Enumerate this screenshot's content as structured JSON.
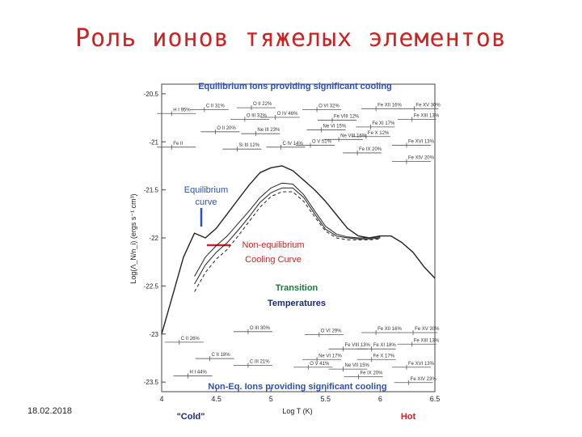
{
  "slide": {
    "title": "Роль ионов тяжелых элементов",
    "date": "18.02.2018"
  },
  "colors": {
    "title": "#cc2222",
    "blue": "#2b4fbf",
    "red": "#d42020",
    "dark_blue": "#1a2a7a",
    "curve": "#222222"
  },
  "chart_data": {
    "type": "line",
    "title": "Equilibrium Ions providing significant cooling",
    "bottom_title": "Non-Eq. Ions providing significant cooling",
    "xlabel": "Log T (K)",
    "ylabel": "Log(Λ_N/n_i) (ergs s⁻¹ cm³)",
    "x_ticks": [
      "4",
      "4.5",
      "5",
      "5.5",
      "6",
      "6.5"
    ],
    "y_ticks": [
      "-20.5",
      "-21",
      "-21.5",
      "-22",
      "-22.5",
      "-23",
      "-23.5"
    ],
    "xlim": [
      4,
      6.5
    ],
    "ylim": [
      -23.6,
      -20.4
    ],
    "x_end_labels": {
      "left": "\"Cold\"",
      "right": "Hot"
    },
    "annotations": {
      "equilibrium": [
        "Equilibrium",
        "curve"
      ],
      "non_equilibrium": [
        "Non-equilibrium",
        "Cooling Curve"
      ],
      "transition": [
        "Transition",
        "Temperatures"
      ]
    },
    "series": [
      {
        "line": "solid",
        "width": 1.4,
        "x": [
          4.0,
          4.1,
          4.2,
          4.3,
          4.4,
          4.5,
          4.6,
          4.7,
          4.8,
          4.9,
          5.0,
          5.1,
          5.2,
          5.3,
          5.4,
          5.5,
          5.6,
          5.7,
          5.8,
          5.9,
          6.0,
          6.1,
          6.2,
          6.3,
          6.4,
          6.5
        ],
        "y": [
          -23.0,
          -22.6,
          -22.2,
          -21.95,
          -22.0,
          -21.9,
          -21.75,
          -21.6,
          -21.45,
          -21.32,
          -21.27,
          -21.25,
          -21.3,
          -21.4,
          -21.5,
          -21.62,
          -21.76,
          -21.9,
          -21.98,
          -22.0,
          -21.98,
          -21.98,
          -22.05,
          -22.15,
          -22.3,
          -22.42
        ]
      },
      {
        "line": "solid",
        "width": 1.0,
        "x": [
          4.3,
          4.4,
          4.5,
          4.6,
          4.7,
          4.8,
          4.9,
          5.0,
          5.1,
          5.2,
          5.3,
          5.4,
          5.5,
          5.6,
          5.7,
          5.8,
          5.9,
          6.0
        ],
        "y": [
          -22.4,
          -22.2,
          -22.08,
          -21.98,
          -21.85,
          -21.72,
          -21.58,
          -21.48,
          -21.43,
          -21.44,
          -21.55,
          -21.72,
          -21.88,
          -21.96,
          -21.99,
          -22.0,
          -22.0,
          -21.99
        ]
      },
      {
        "line": "solid",
        "width": 1.0,
        "x": [
          4.3,
          4.4,
          4.5,
          4.6,
          4.7,
          4.8,
          4.9,
          5.0,
          5.1,
          5.2,
          5.3,
          5.4,
          5.5,
          5.6,
          5.7,
          5.8,
          5.9,
          6.0
        ],
        "y": [
          -22.48,
          -22.28,
          -22.15,
          -22.05,
          -21.92,
          -21.78,
          -21.63,
          -21.53,
          -21.48,
          -21.48,
          -21.58,
          -21.75,
          -21.91,
          -21.98,
          -22.0,
          -22.01,
          -22.01,
          -22.0
        ]
      },
      {
        "line": "dashed",
        "width": 1.0,
        "x": [
          4.3,
          4.4,
          4.5,
          4.6,
          4.7,
          4.8,
          4.9,
          5.0,
          5.1,
          5.2,
          5.3,
          5.4,
          5.5,
          5.6,
          5.7,
          5.8,
          5.9,
          6.0
        ],
        "y": [
          -22.56,
          -22.36,
          -22.22,
          -22.12,
          -21.98,
          -21.83,
          -21.68,
          -21.57,
          -21.52,
          -21.52,
          -21.62,
          -21.78,
          -21.93,
          -22.0,
          -22.02,
          -22.02,
          -22.02,
          -22.01
        ]
      }
    ],
    "top_ions": [
      {
        "label": "O II 22%",
        "x": 4.88,
        "y": -20.62
      },
      {
        "label": "H I 95%",
        "x": 4.15,
        "y": -20.68
      },
      {
        "label": "C II 31%",
        "x": 4.45,
        "y": -20.64
      },
      {
        "label": "O III 32%",
        "x": 4.82,
        "y": -20.74
      },
      {
        "label": "O IV 46%",
        "x": 5.1,
        "y": -20.72
      },
      {
        "label": "O VI 32%",
        "x": 5.48,
        "y": -20.64
      },
      {
        "label": "Fe XII 16%",
        "x": 6.02,
        "y": -20.63
      },
      {
        "label": "Fe XV 30%",
        "x": 6.37,
        "y": -20.63
      },
      {
        "label": "Fe VIII 12%",
        "x": 5.62,
        "y": -20.75
      },
      {
        "label": "Fe XIII 13%",
        "x": 6.35,
        "y": -20.74
      },
      {
        "label": "Fe XI 17%",
        "x": 5.97,
        "y": -20.82
      },
      {
        "label": "Ne VI 15%",
        "x": 5.52,
        "y": -20.85
      },
      {
        "label": "Fe X 12%",
        "x": 5.93,
        "y": -20.92
      },
      {
        "label": "O II 20%",
        "x": 4.55,
        "y": -20.87
      },
      {
        "label": "Ne III 23%",
        "x": 4.92,
        "y": -20.89
      },
      {
        "label": "Ne VIII 16%",
        "x": 5.68,
        "y": -20.95
      },
      {
        "label": "Fe II",
        "x": 4.15,
        "y": -21.03
      },
      {
        "label": "Si III 12%",
        "x": 4.75,
        "y": -21.05
      },
      {
        "label": "C IV 14%",
        "x": 5.15,
        "y": -21.03
      },
      {
        "label": "O V 51%",
        "x": 5.42,
        "y": -21.01
      },
      {
        "label": "Fe XVI 13%",
        "x": 6.3,
        "y": -21.01
      },
      {
        "label": "Fe IX 20%",
        "x": 5.85,
        "y": -21.09
      },
      {
        "label": "Fe XIV 20%",
        "x": 6.3,
        "y": -21.18
      }
    ],
    "bottom_ions": [
      {
        "label": "O III 30%",
        "x": 4.85,
        "y": -22.95
      },
      {
        "label": "C II 26%",
        "x": 4.22,
        "y": -23.06
      },
      {
        "label": "O VI 29%",
        "x": 5.5,
        "y": -22.98
      },
      {
        "label": "Fe XII 16%",
        "x": 6.02,
        "y": -22.96
      },
      {
        "label": "Fe XV 30%",
        "x": 6.36,
        "y": -22.96
      },
      {
        "label": "Fe VIII 13%",
        "x": 5.72,
        "y": -23.13
      },
      {
        "label": "Fe XI 18%",
        "x": 5.98,
        "y": -23.13
      },
      {
        "label": "Fe XIII 13%",
        "x": 6.35,
        "y": -23.08
      },
      {
        "label": "C II 18%",
        "x": 4.5,
        "y": -23.23
      },
      {
        "label": "C III 21%",
        "x": 4.85,
        "y": -23.3
      },
      {
        "label": "Ne VI 17%",
        "x": 5.48,
        "y": -23.24
      },
      {
        "label": "Fe X 17%",
        "x": 5.98,
        "y": -23.24
      },
      {
        "label": "O V 41%",
        "x": 5.4,
        "y": -23.32
      },
      {
        "label": "Ne VII 15%",
        "x": 5.72,
        "y": -23.34
      },
      {
        "label": "Fe XVI 13%",
        "x": 6.3,
        "y": -23.32
      },
      {
        "label": "H I 44%",
        "x": 4.3,
        "y": -23.41
      },
      {
        "label": "Fe IX 20%",
        "x": 5.86,
        "y": -23.42
      },
      {
        "label": "Fe XIV 23%",
        "x": 6.32,
        "y": -23.48
      }
    ]
  }
}
